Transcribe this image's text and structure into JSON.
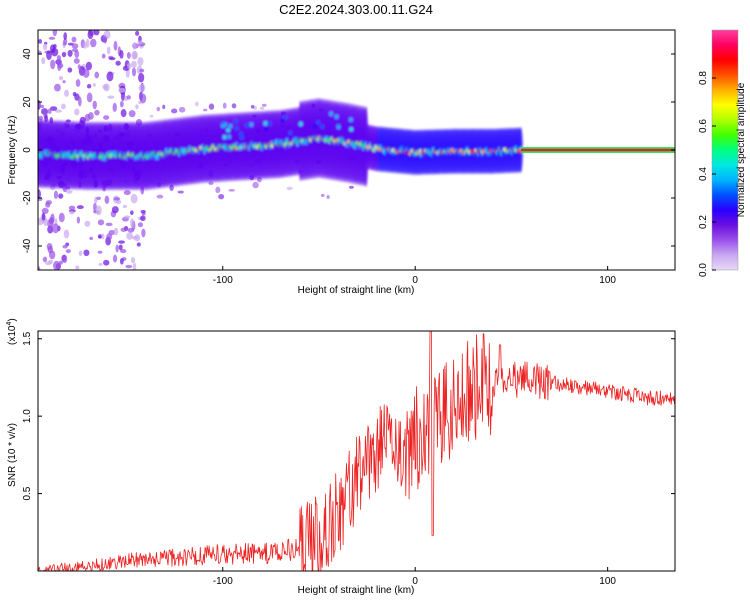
{
  "title": "C2E2.2024.303.00.11.G24",
  "chart_data": [
    {
      "type": "heatmap",
      "name": "spectrogram",
      "xlabel": "Height of straight line (km)",
      "ylabel": "Frequency (Hz)",
      "xlim": [
        -196,
        135
      ],
      "ylim": [
        -50,
        50
      ],
      "xticks": [
        -100,
        0,
        100
      ],
      "yticks": [
        -40,
        -20,
        0,
        20,
        40
      ],
      "colorbar": {
        "label": "Normalized spectral amplitude",
        "range": [
          0,
          1
        ],
        "ticks": [
          "0.0",
          "0.2",
          "0.4",
          "0.6",
          "0.8"
        ],
        "colors": [
          "#e8d8f8",
          "#c9a8f0",
          "#9a50ea",
          "#6a10e0",
          "#2a00ff",
          "#0050ff",
          "#00b4ff",
          "#00e8e0",
          "#00ff80",
          "#40ff00",
          "#b0ff00",
          "#ffff00",
          "#ffb000",
          "#ff5000",
          "#ff0000",
          "#ff0060",
          "#ff40a0"
        ]
      },
      "centerline": [
        {
          "x": -196,
          "f": -1.5
        },
        {
          "x": -170,
          "f": -2.5
        },
        {
          "x": -140,
          "f": -2.5
        },
        {
          "x": -110,
          "f": 0.5
        },
        {
          "x": -90,
          "f": 1.5
        },
        {
          "x": -70,
          "f": 2.5
        },
        {
          "x": -50,
          "f": 5
        },
        {
          "x": -35,
          "f": 3
        },
        {
          "x": -20,
          "f": 0.5
        },
        {
          "x": 0,
          "f": -1
        },
        {
          "x": 20,
          "f": -0.5
        },
        {
          "x": 40,
          "f": -0.5
        },
        {
          "x": 55,
          "f": 0
        },
        {
          "x": 135,
          "f": 0
        }
      ]
    },
    {
      "type": "line",
      "name": "snr",
      "xlabel": "Height of straight line (km)",
      "ylabel": "SNR (10 * v/v)",
      "yscale_label": "(x10",
      "yscale_exp": "4",
      "xlim": [
        -196,
        135
      ],
      "ylim": [
        0,
        1.55
      ],
      "xticks": [
        -100,
        0,
        100
      ],
      "yticks": [
        "0.5",
        "1.0",
        "1.5"
      ],
      "color": "#ee2222",
      "trend": [
        {
          "x": -196,
          "y": 0.01
        },
        {
          "x": -170,
          "y": 0.03
        },
        {
          "x": -150,
          "y": 0.07
        },
        {
          "x": -120,
          "y": 0.09
        },
        {
          "x": -100,
          "y": 0.11
        },
        {
          "x": -80,
          "y": 0.11
        },
        {
          "x": -60,
          "y": 0.14
        },
        {
          "x": -45,
          "y": 0.28
        },
        {
          "x": -35,
          "y": 0.5
        },
        {
          "x": -25,
          "y": 0.7
        },
        {
          "x": -15,
          "y": 0.85
        },
        {
          "x": -5,
          "y": 0.75
        },
        {
          "x": 0,
          "y": 0.85
        },
        {
          "x": 10,
          "y": 0.95
        },
        {
          "x": 20,
          "y": 1.08
        },
        {
          "x": 30,
          "y": 1.18
        },
        {
          "x": 40,
          "y": 1.22
        },
        {
          "x": 60,
          "y": 1.24
        },
        {
          "x": 80,
          "y": 1.2
        },
        {
          "x": 100,
          "y": 1.16
        },
        {
          "x": 120,
          "y": 1.12
        },
        {
          "x": 135,
          "y": 1.11
        }
      ],
      "features": [
        {
          "x": 8,
          "y": 1.55,
          "label": "spike"
        },
        {
          "x": 9,
          "y": 0.23,
          "label": "dip"
        },
        {
          "x": 44,
          "y": 1.46,
          "label": "peak"
        }
      ]
    }
  ]
}
